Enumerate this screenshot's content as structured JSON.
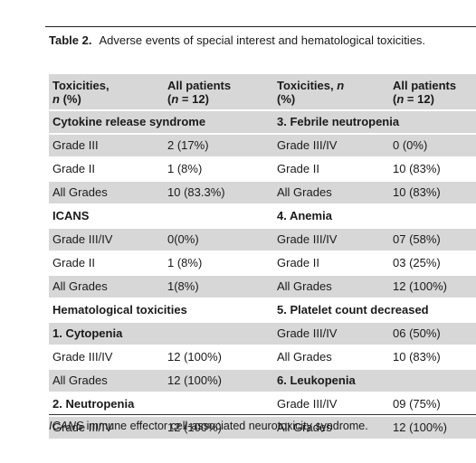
{
  "caption": {
    "label": "Table 2.",
    "text": "Adverse events of special interest and hematological toxicities."
  },
  "columns": {
    "left_tox_line1": "Toxicities,",
    "left_tox_line2_italic": "n",
    "left_tox_line2_rest": " (%)",
    "left_all_line1": "All patients",
    "left_all_line2_pre": "(",
    "left_all_line2_italic": "n",
    "left_all_line2_rest": " = 12)",
    "right_tox_line1_pre": "Toxicities, ",
    "right_tox_line1_italic": "n",
    "right_tox_line2": "(%)",
    "right_all_line1": "All patients",
    "right_all_line2_pre": "(",
    "right_all_line2_italic": "n",
    "right_all_line2_rest": " = 12)"
  },
  "rows": [
    {
      "shade": true,
      "l_label": "Cytokine release syndrome",
      "l_head": true,
      "l_span": true,
      "l_value": "",
      "r_label": "3. Febrile neutropenia",
      "r_head": true,
      "r_span": true,
      "r_value": ""
    },
    {
      "shade": true,
      "l_label": "Grade III",
      "l_head": false,
      "l_span": false,
      "l_value": "2 (17%)",
      "r_label": "Grade III/IV",
      "r_head": false,
      "r_span": false,
      "r_value": "0 (0%)"
    },
    {
      "shade": false,
      "l_label": "Grade II",
      "l_head": false,
      "l_span": false,
      "l_value": "1 (8%)",
      "r_label": "Grade II",
      "r_head": false,
      "r_span": false,
      "r_value": "10 (83%)"
    },
    {
      "shade": true,
      "l_label": "All Grades",
      "l_head": false,
      "l_span": false,
      "l_value": "10 (83.3%)",
      "r_label": "All Grades",
      "r_head": false,
      "r_span": false,
      "r_value": "10 (83%)"
    },
    {
      "shade": false,
      "l_label": "ICANS",
      "l_head": true,
      "l_span": false,
      "l_value": "",
      "r_label": "4. Anemia",
      "r_head": true,
      "r_span": false,
      "r_value": ""
    },
    {
      "shade": true,
      "l_label": "Grade III/IV",
      "l_head": false,
      "l_span": false,
      "l_value": "0(0%)",
      "r_label": "Grade III/IV",
      "r_head": false,
      "r_span": false,
      "r_value": "07 (58%)"
    },
    {
      "shade": false,
      "l_label": "Grade II",
      "l_head": false,
      "l_span": false,
      "l_value": "1 (8%)",
      "r_label": "Grade II",
      "r_head": false,
      "r_span": false,
      "r_value": "03 (25%)"
    },
    {
      "shade": true,
      "l_label": "All Grades",
      "l_head": false,
      "l_span": false,
      "l_value": "1(8%)",
      "r_label": "All Grades",
      "r_head": false,
      "r_span": false,
      "r_value": "12 (100%)"
    },
    {
      "shade": false,
      "l_label": "Hematological toxicities",
      "l_head": true,
      "l_span": true,
      "l_value": "",
      "r_label": "5. Platelet count decreased",
      "r_head": true,
      "r_span": true,
      "r_value": ""
    },
    {
      "shade": true,
      "l_label": "1. Cytopenia",
      "l_head": true,
      "l_span": false,
      "l_value": "",
      "r_label": "Grade III/IV",
      "r_head": false,
      "r_span": false,
      "r_value": "06 (50%)"
    },
    {
      "shade": false,
      "l_label": "Grade III/IV",
      "l_head": false,
      "l_span": false,
      "l_value": "12 (100%)",
      "r_label": "All Grades",
      "r_head": false,
      "r_span": false,
      "r_value": "10 (83%)"
    },
    {
      "shade": true,
      "l_label": "All Grades",
      "l_head": false,
      "l_span": false,
      "l_value": "12 (100%)",
      "r_label": "6. Leukopenia",
      "r_head": true,
      "r_span": false,
      "r_value": ""
    },
    {
      "shade": false,
      "l_label": "2. Neutropenia",
      "l_head": true,
      "l_span": false,
      "l_value": "",
      "r_label": "Grade III/IV",
      "r_head": false,
      "r_span": false,
      "r_value": "09 (75%)"
    },
    {
      "shade": true,
      "l_label": "Grade III/IV",
      "l_head": false,
      "l_span": false,
      "l_value": "12 (100%)",
      "r_label": "All Grades",
      "r_head": false,
      "r_span": false,
      "r_value": "12 (100%)"
    }
  ],
  "footnote": {
    "abbr": "ICANS",
    "text": " immune effector cell-associated neurotoxicity syndrome."
  }
}
